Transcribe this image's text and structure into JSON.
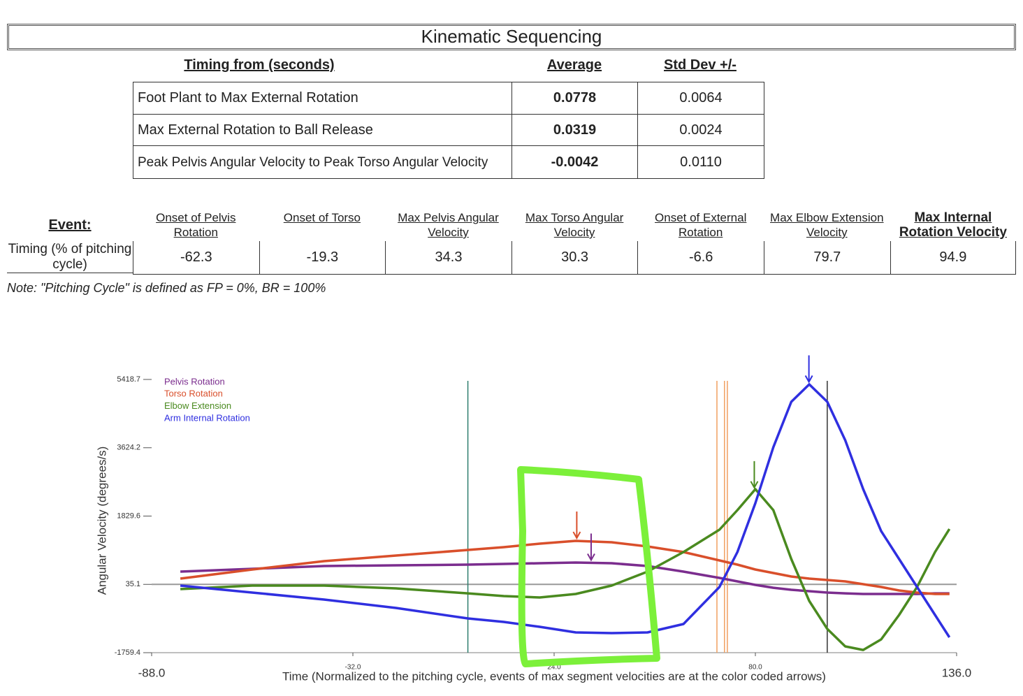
{
  "header": {
    "title": "Kinematic Sequencing"
  },
  "timing_table": {
    "columns": [
      "Timing from (seconds)",
      "Average",
      "Std Dev +/-"
    ],
    "rows": [
      [
        "Foot Plant to Max External Rotation",
        "0.0778",
        "0.0064"
      ],
      [
        "Max External Rotation to Ball Release",
        "0.0319",
        "0.0024"
      ],
      [
        "Peak Pelvis Angular Velocity to Peak Torso Angular Velocity",
        "-0.0042",
        "0.0110"
      ]
    ]
  },
  "event_table": {
    "row_header": "Event:",
    "columns": [
      "Onset of Pelvis Rotation",
      "Onset of Torso",
      "Max Pelvis Angular Velocity",
      "Max Torso Angular Velocity",
      "Onset of External Rotation",
      "Max Elbow Extension Velocity",
      "Max Internal Rotation Velocity"
    ],
    "row_label": "Timing (% of pitching cycle)",
    "values": [
      "-62.3",
      "-19.3",
      "34.3",
      "30.3",
      "-6.6",
      "79.7",
      "94.9"
    ]
  },
  "note": "Note: \"Pitching Cycle\" is defined as FP = 0%, BR = 100%",
  "chart_data": {
    "type": "line",
    "y_label": "Angular Velocity (degrees/s)",
    "x_label": "Time (Normalized to the pitching cycle, events of max segment velocities are at the color coded arrows)",
    "x": [
      -80,
      -60,
      -40,
      -20,
      0,
      10,
      20,
      30,
      40,
      50,
      60,
      70,
      75,
      80,
      85,
      90,
      95,
      100,
      105,
      110,
      115,
      120,
      125,
      130,
      134
    ],
    "series": [
      {
        "name": "Pelvis Rotation",
        "color": "#7b2d8e",
        "values": [
          370,
          443,
          517,
          535,
          553,
          572,
          590,
          608,
          590,
          517,
          370,
          205,
          113,
          21,
          -53,
          -108,
          -144,
          -181,
          -200,
          -218,
          -218,
          -218,
          -218,
          -200,
          -200
        ]
      },
      {
        "name": "Torso Rotation",
        "color": "#d94f2b",
        "values": [
          186,
          425,
          645,
          792,
          939,
          1012,
          1104,
          1178,
          1141,
          1031,
          884,
          664,
          553,
          425,
          333,
          241,
          186,
          150,
          113,
          40,
          -34,
          -126,
          -181,
          -218,
          -218
        ]
      },
      {
        "name": "Elbow Extension",
        "color": "#4a8a1f",
        "values": [
          -89,
          3,
          3,
          -71,
          -200,
          -273,
          -309,
          -218,
          3,
          370,
          884,
          1471,
          1985,
          2536,
          1985,
          700,
          -401,
          -1136,
          -1595,
          -1687,
          -1411,
          -768,
          -34,
          884,
          1490
        ]
      },
      {
        "name": "Arm Internal Rotation",
        "color": "#2f2fe0",
        "values": [
          3,
          -181,
          -365,
          -585,
          -860,
          -952,
          -1080,
          -1227,
          -1246,
          -1227,
          -1007,
          -34,
          884,
          2169,
          3638,
          4831,
          5290,
          4831,
          3822,
          2536,
          1435,
          700,
          -34,
          -768,
          -1356
        ]
      }
    ],
    "xlim": [
      -88.0,
      136.0
    ],
    "xticks": [
      {
        "value": -88,
        "label": "-88.0"
      },
      {
        "value": -32,
        "label": "-32.0"
      },
      {
        "value": 24,
        "label": "24.0"
      },
      {
        "value": 80,
        "label": "80.0"
      },
      {
        "value": 136,
        "label": "136.0"
      }
    ],
    "ylim": [
      -1759.4,
      5418.7
    ],
    "yticks": [
      -1759.4,
      35.1,
      1829.6,
      3624.2,
      5418.7
    ],
    "reference_line": 35.1,
    "event_lines": [
      {
        "x": 0,
        "color": "#2e7d6e"
      },
      {
        "x": 69.3,
        "color": "#f0a060"
      },
      {
        "x": 71.4,
        "color": "#f0a060"
      },
      {
        "x": 72.2,
        "color": "#f0a060"
      },
      {
        "x": 100,
        "color": "#333333"
      }
    ],
    "arrows": [
      {
        "x": 34.3,
        "color": "#7b2d8e"
      },
      {
        "x": 30.3,
        "color": "#d94f2b"
      },
      {
        "x": 79.7,
        "color": "#4a8a1f"
      },
      {
        "x": 94.9,
        "color": "#2f2fe0"
      }
    ]
  }
}
